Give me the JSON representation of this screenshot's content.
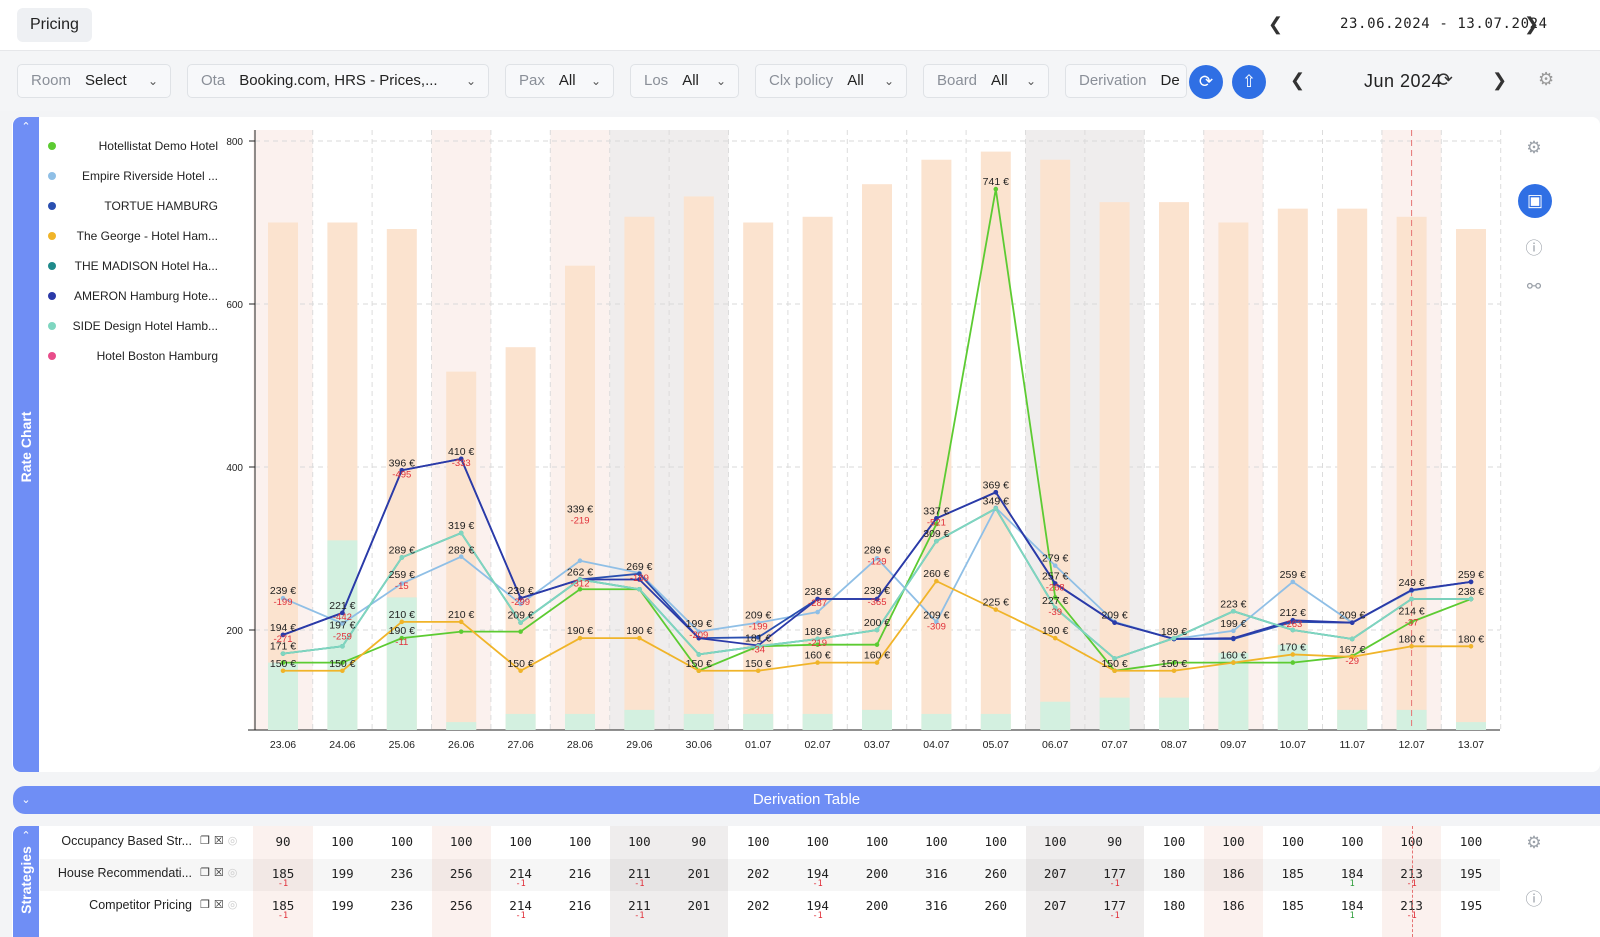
{
  "header": {
    "page_tab": "Pricing",
    "date_range": "23.06.2024 - 13.07.2024"
  },
  "filters": [
    {
      "label": "Room",
      "value": "Select"
    },
    {
      "label": "Ota",
      "value": "Booking.com, HRS - Prices,..."
    },
    {
      "label": "Pax",
      "value": "All"
    },
    {
      "label": "Los",
      "value": "All"
    },
    {
      "label": "Clx policy",
      "value": "All"
    },
    {
      "label": "Board",
      "value": "All"
    },
    {
      "label": "Derivation",
      "value": "De"
    }
  ],
  "month": "Jun 2024",
  "rate_chart": {
    "title": "Rate Chart"
  },
  "derivation_table": {
    "title": "Derivation Table"
  },
  "strategies": {
    "title": "Strategies",
    "rows": [
      {
        "label": "Occupancy Based Str...",
        "values": [
          "90",
          "100",
          "100",
          "100",
          "100",
          "100",
          "100",
          "90",
          "100",
          "100",
          "100",
          "100",
          "100",
          "100",
          "90",
          "100",
          "100",
          "100",
          "100",
          "100",
          "100"
        ],
        "subs": [
          "",
          "",
          "",
          "",
          "",
          "",
          "",
          "",
          "",
          "",
          "",
          "",
          "",
          "",
          "",
          "",
          "",
          "",
          "",
          "",
          ""
        ]
      },
      {
        "label": "House Recommendati...",
        "values": [
          "185",
          "199",
          "236",
          "256",
          "214",
          "216",
          "211",
          "201",
          "202",
          "194",
          "200",
          "316",
          "260",
          "207",
          "177",
          "180",
          "186",
          "185",
          "184",
          "213",
          "195"
        ],
        "subs": [
          "-1",
          "",
          "",
          "",
          "-1",
          "",
          "-1",
          "",
          "",
          "-1",
          "",
          "",
          "",
          "",
          "-1",
          "",
          "",
          "",
          "1",
          "-1",
          ""
        ]
      },
      {
        "label": "Competitor Pricing",
        "values": [
          "185",
          "199",
          "236",
          "256",
          "214",
          "216",
          "211",
          "201",
          "202",
          "194",
          "200",
          "316",
          "260",
          "207",
          "177",
          "180",
          "186",
          "185",
          "184",
          "213",
          "195"
        ],
        "subs": [
          "-1",
          "",
          "",
          "",
          "-1",
          "",
          "-1",
          "",
          "",
          "-1",
          "",
          "",
          "",
          "",
          "-1",
          "",
          "",
          "",
          "1",
          "-1",
          ""
        ]
      }
    ]
  },
  "chart_data": {
    "type": "line",
    "x": [
      "23.06",
      "24.06",
      "25.06",
      "26.06",
      "27.06",
      "28.06",
      "29.06",
      "30.06",
      "01.07",
      "02.07",
      "03.07",
      "04.07",
      "05.07",
      "06.07",
      "07.07",
      "08.07",
      "09.07",
      "10.07",
      "11.07",
      "12.07",
      "13.07"
    ],
    "ylim": [
      80,
      800
    ],
    "yticks": [
      200,
      400,
      600,
      800
    ],
    "grid": true,
    "legend_position": "left",
    "bars_total": [
      700,
      700,
      692,
      517,
      547,
      647,
      707,
      732,
      700,
      707,
      747,
      777,
      787,
      777,
      725,
      725,
      700,
      717,
      717,
      707,
      692
    ],
    "bars_green": [
      160,
      310,
      240,
      87,
      97,
      97,
      102,
      97,
      97,
      97,
      102,
      97,
      97,
      112,
      117,
      117,
      172,
      182,
      102,
      102,
      87
    ],
    "series": [
      {
        "name": "Hotellistat Demo Hotel",
        "color": "#5ccb32",
        "values": [
          160,
          160,
          190,
          198,
          198,
          250,
          250,
          150,
          180,
          182,
          182,
          330,
          741,
          240,
          150,
          160,
          160,
          160,
          168,
          210,
          238
        ]
      },
      {
        "name": "Empire Riverside Hotel ...",
        "color": "#8fbfe6",
        "values": [
          239,
          208,
          257,
          290,
          232,
          285,
          270,
          198,
          209,
          222,
          288,
          210,
          350,
          279,
          210,
          189,
          199,
          259,
          209,
          248,
          259
        ]
      },
      {
        "name": "TORTUE HAMBURG",
        "color": "#2a4fb0",
        "values": [
          194,
          221,
          396,
          410,
          239,
          262,
          269,
          190,
          191,
          238,
          238,
          337,
          369,
          257,
          209,
          189,
          189,
          210,
          209,
          249,
          259
        ]
      },
      {
        "name": "The George - Hotel Ham...",
        "color": "#f0b429",
        "values": [
          150,
          150,
          210,
          210,
          150,
          190,
          190,
          150,
          150,
          160,
          160,
          260,
          225,
          190,
          150,
          150,
          160,
          170,
          167,
          180,
          180
        ]
      },
      {
        "name": "THE MADISON Hotel Ha...",
        "color": "#1f8a8a",
        "values": [
          171,
          180,
          289,
          319,
          209,
          262,
          250,
          170,
          180,
          189,
          200,
          309,
          349,
          227,
          165,
          190,
          223,
          200,
          189,
          238,
          238
        ]
      },
      {
        "name": "AMERON Hamburg Hote...",
        "color": "#2b3aa8",
        "values": [
          194,
          221,
          396,
          410,
          239,
          262,
          262,
          190,
          181,
          238,
          238,
          337,
          369,
          257,
          209,
          189,
          190,
          212,
          209,
          249,
          259
        ]
      },
      {
        "name": "SIDE Design Hotel Hamb...",
        "color": "#7fd6c0",
        "values": [
          171,
          180,
          289,
          319,
          209,
          262,
          250,
          170,
          180,
          189,
          200,
          309,
          349,
          227,
          165,
          190,
          223,
          200,
          189,
          238,
          238
        ]
      },
      {
        "name": "Hotel Boston Hamburg",
        "color": "#e84d8a",
        "values": [
          null,
          null,
          null,
          null,
          null,
          null,
          null,
          null,
          null,
          null,
          null,
          null,
          null,
          null,
          null,
          null,
          null,
          null,
          null,
          null,
          null
        ]
      }
    ],
    "price_labels": [
      {
        "i": 0,
        "v": 239,
        "t": "239 €",
        "d": "-199"
      },
      {
        "i": 0,
        "v": 194,
        "t": "194 €",
        "d": "-271"
      },
      {
        "i": 0,
        "v": 171,
        "t": "171 €",
        "d": ""
      },
      {
        "i": 0,
        "v": 150,
        "t": "150 €",
        "d": ""
      },
      {
        "i": 1,
        "v": 221,
        "t": "221 €",
        "d": "-442"
      },
      {
        "i": 1,
        "v": 197,
        "t": "197 €",
        "d": "-259"
      },
      {
        "i": 1,
        "v": 150,
        "t": "150 €",
        "d": ""
      },
      {
        "i": 2,
        "v": 396,
        "t": "396 €",
        "d": "-495"
      },
      {
        "i": 2,
        "v": 289,
        "t": "289 €",
        "d": ""
      },
      {
        "i": 2,
        "v": 259,
        "t": "259 €",
        "d": "-15"
      },
      {
        "i": 2,
        "v": 210,
        "t": "210 €",
        "d": ""
      },
      {
        "i": 2,
        "v": 190,
        "t": "190 €",
        "d": "-11"
      },
      {
        "i": 3,
        "v": 410,
        "t": "410 €",
        "d": "-333"
      },
      {
        "i": 3,
        "v": 319,
        "t": "319 €",
        "d": ""
      },
      {
        "i": 3,
        "v": 289,
        "t": "289 €",
        "d": ""
      },
      {
        "i": 3,
        "v": 210,
        "t": "210 €",
        "d": ""
      },
      {
        "i": 4,
        "v": 239,
        "t": "239 €",
        "d": "-299"
      },
      {
        "i": 4,
        "v": 209,
        "t": "209 €",
        "d": ""
      },
      {
        "i": 4,
        "v": 150,
        "t": "150 €",
        "d": ""
      },
      {
        "i": 5,
        "v": 339,
        "t": "339 €",
        "d": "-219"
      },
      {
        "i": 5,
        "v": 262,
        "t": "262 €",
        "d": "-312"
      },
      {
        "i": 5,
        "v": 190,
        "t": "190 €",
        "d": ""
      },
      {
        "i": 6,
        "v": 269,
        "t": "269 €",
        "d": "-189"
      },
      {
        "i": 6,
        "v": 190,
        "t": "190 €",
        "d": ""
      },
      {
        "i": 7,
        "v": 199,
        "t": "199 €",
        "d": "-209"
      },
      {
        "i": 7,
        "v": 150,
        "t": "150 €",
        "d": ""
      },
      {
        "i": 8,
        "v": 209,
        "t": "209 €",
        "d": "-199"
      },
      {
        "i": 8,
        "v": 181,
        "t": "181 €",
        "d": "-34"
      },
      {
        "i": 8,
        "v": 150,
        "t": "150 €",
        "d": ""
      },
      {
        "i": 9,
        "v": 238,
        "t": "238 €",
        "d": "-287"
      },
      {
        "i": 9,
        "v": 189,
        "t": "189 €",
        "d": "-219"
      },
      {
        "i": 9,
        "v": 160,
        "t": "160 €",
        "d": ""
      },
      {
        "i": 10,
        "v": 289,
        "t": "289 €",
        "d": "-129"
      },
      {
        "i": 10,
        "v": 239,
        "t": "239 €",
        "d": "-365"
      },
      {
        "i": 10,
        "v": 200,
        "t": "200 €",
        "d": ""
      },
      {
        "i": 10,
        "v": 160,
        "t": "160 €",
        "d": ""
      },
      {
        "i": 11,
        "v": 337,
        "t": "337 €",
        "d": "-521"
      },
      {
        "i": 11,
        "v": 309,
        "t": "309 €",
        "d": ""
      },
      {
        "i": 11,
        "v": 260,
        "t": "260 €",
        "d": ""
      },
      {
        "i": 11,
        "v": 209,
        "t": "209 €",
        "d": "-309"
      },
      {
        "i": 12,
        "v": 741,
        "t": "741 €",
        "d": ""
      },
      {
        "i": 12,
        "v": 369,
        "t": "369 €",
        "d": ""
      },
      {
        "i": 12,
        "v": 349,
        "t": "349 €",
        "d": ""
      },
      {
        "i": 12,
        "v": 225,
        "t": "225 €",
        "d": ""
      },
      {
        "i": 13,
        "v": 279,
        "t": "279 €",
        "d": ""
      },
      {
        "i": 13,
        "v": 257,
        "t": "257 €",
        "d": "-268"
      },
      {
        "i": 13,
        "v": 227,
        "t": "227 €",
        "d": "-39"
      },
      {
        "i": 13,
        "v": 190,
        "t": "190 €",
        "d": ""
      },
      {
        "i": 14,
        "v": 209,
        "t": "209 €",
        "d": ""
      },
      {
        "i": 14,
        "v": 150,
        "t": "150 €",
        "d": ""
      },
      {
        "i": 15,
        "v": 189,
        "t": "189 €",
        "d": ""
      },
      {
        "i": 15,
        "v": 150,
        "t": "150 €",
        "d": ""
      },
      {
        "i": 16,
        "v": 223,
        "t": "223 €",
        "d": ""
      },
      {
        "i": 16,
        "v": 199,
        "t": "199 €",
        "d": ""
      },
      {
        "i": 16,
        "v": 160,
        "t": "160 €",
        "d": ""
      },
      {
        "i": 17,
        "v": 259,
        "t": "259 €",
        "d": ""
      },
      {
        "i": 17,
        "v": 212,
        "t": "212 €",
        "d": "-263"
      },
      {
        "i": 17,
        "v": 170,
        "t": "170 €",
        "d": ""
      },
      {
        "i": 18,
        "v": 209,
        "t": "209 €",
        "d": ""
      },
      {
        "i": 18,
        "v": 167,
        "t": "167 €",
        "d": "-29"
      },
      {
        "i": 19,
        "v": 249,
        "t": "249 €",
        "d": ""
      },
      {
        "i": 19,
        "v": 214,
        "t": "214 €",
        "d": "-37"
      },
      {
        "i": 19,
        "v": 180,
        "t": "180 €",
        "d": ""
      },
      {
        "i": 20,
        "v": 259,
        "t": "259 €",
        "d": ""
      },
      {
        "i": 20,
        "v": 238,
        "t": "238 €",
        "d": ""
      },
      {
        "i": 20,
        "v": 180,
        "t": "180 €",
        "d": ""
      }
    ]
  },
  "colors": {
    "accent": "#2f6fe4",
    "strip": "#6f8ef5",
    "bar": "#fbe3cf",
    "bar_green": "#d3f0e0",
    "today_line": "#e57373"
  },
  "icons": {
    "prev": "chevron-left-icon",
    "next": "chevron-right-icon",
    "sync": "sync-icon",
    "export": "upload-icon",
    "refresh": "refresh-icon",
    "settings": "gear-icon"
  }
}
